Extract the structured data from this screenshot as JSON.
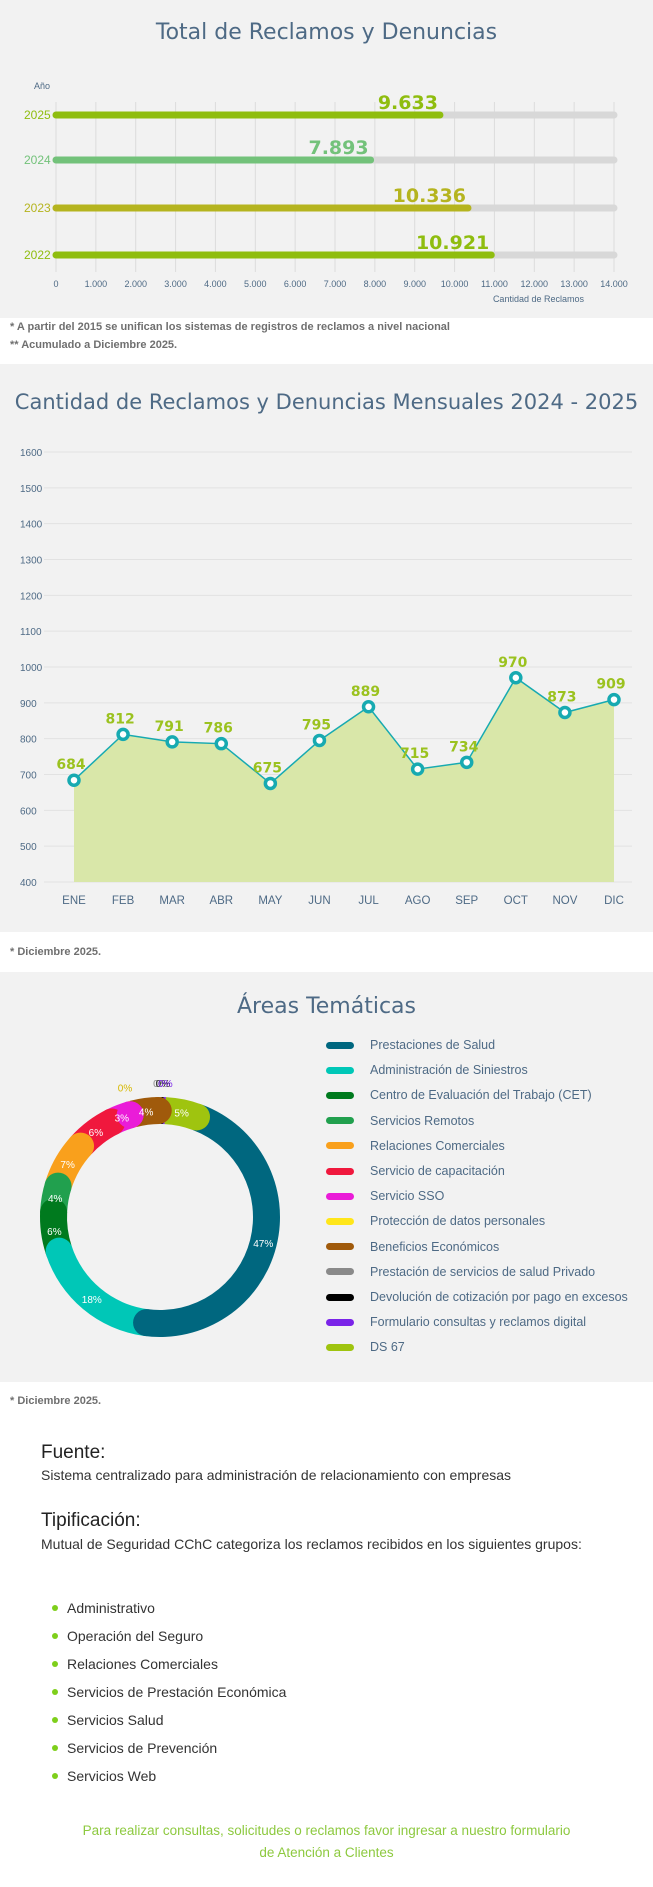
{
  "section1": {
    "title": "Total de Reclamos y Denuncias",
    "notes": [
      "* A partir del 2015 se unifican los sistemas de registros de reclamos a nivel nacional",
      "** Acumulado a Diciembre 2025."
    ]
  },
  "section2": {
    "title": "Cantidad de Reclamos y Denuncias Mensuales 2024 - 2025",
    "note": "* Diciembre 2025."
  },
  "section3": {
    "title": "Áreas Temáticas",
    "note": "* Diciembre 2025."
  },
  "fuente": {
    "title": "Fuente:",
    "text": "Sistema centralizado para administración de relacionamiento con empresas"
  },
  "tipificacion": {
    "title": "Tipificación:",
    "text": "Mutual de Seguridad CChC categoriza los reclamos recibidos en los siguientes grupos:",
    "items": [
      "Administrativo",
      "Operación del Seguro",
      "Relaciones Comerciales",
      "Servicios de Prestación Económica",
      "Servicios Salud",
      "Servicios de Prevención",
      "Servicios Web"
    ]
  },
  "footer": {
    "line1": "Para realizar consultas, solicitudes o reclamos favor ingresar a nuestro formulario",
    "link": "de Atención a Clientes"
  },
  "colors": {
    "title_blue": "#4e6a85",
    "lime": "#8fbd0f",
    "green_2024": "#73c27a",
    "olive_2023": "#b5b41f",
    "teal_marker": "#17aab1",
    "area_fill": "#d9e7a9"
  },
  "chart_data": [
    {
      "type": "bar",
      "orientation": "horizontal",
      "title": "Total de Reclamos y Denuncias",
      "ylabel": "Año",
      "xlabel": "Cantidad de Reclamos",
      "categories": [
        "2025",
        "2024",
        "2023",
        "2022"
      ],
      "values": [
        9633,
        7893,
        10336,
        10921
      ],
      "value_labels": [
        "9.633",
        "7.893",
        "10.336",
        "10.921"
      ],
      "bar_colors": [
        "#8fbd0f",
        "#73c27a",
        "#b5b41f",
        "#8fbd0f"
      ],
      "xlim": [
        0,
        14000
      ],
      "xticks": [
        "0",
        "1.000",
        "2.000",
        "3.000",
        "4.000",
        "5.000",
        "6.000",
        "7.000",
        "8.000",
        "9.000",
        "10.000",
        "11.000",
        "12.000",
        "13.000",
        "14.000"
      ],
      "grid": true
    },
    {
      "type": "area",
      "title": "Cantidad de Reclamos y Denuncias Mensuales 2024 - 2025",
      "categories": [
        "ENE",
        "FEB",
        "MAR",
        "ABR",
        "MAY",
        "JUN",
        "JUL",
        "AGO",
        "SEP",
        "OCT",
        "NOV",
        "DIC"
      ],
      "values": [
        684,
        812,
        791,
        786,
        675,
        795,
        889,
        715,
        734,
        970,
        873,
        909
      ],
      "ylim": [
        400,
        1600
      ],
      "yticks": [
        "400",
        "500",
        "600",
        "700",
        "800",
        "900",
        "1000",
        "1100",
        "1200",
        "1300",
        "1400",
        "1500",
        "1600"
      ],
      "grid": true
    },
    {
      "type": "pie",
      "variant": "donut",
      "title": "Áreas Temáticas",
      "legend_position": "right",
      "labels": [
        "Prestaciones de Salud",
        "Administración de Siniestros",
        "Centro de Evaluación del Trabajo (CET)",
        "Servicios Remotos",
        "Relaciones Comerciales",
        "Servicio de capacitación",
        "Servicio SSO",
        "Protección de datos personales",
        "Beneficios Económicos",
        "Prestación de servicios de salud Privado",
        "Devolución de cotización por pago en excesos",
        "Formulario consultas y reclamos digital",
        "DS 67"
      ],
      "values": [
        47,
        18,
        6,
        4,
        7,
        6,
        3,
        0.3,
        4,
        0.3,
        0.3,
        0.3,
        5
      ],
      "value_labels": [
        "47%",
        "18%",
        "6%",
        "4%",
        "7%",
        "6%",
        "3%",
        "0%",
        "4%",
        "0%",
        "0%",
        "0%",
        "5%"
      ],
      "colors": [
        "#00677f",
        "#00c7b7",
        "#007a1e",
        "#21a04e",
        "#f9a01c",
        "#f0183d",
        "#ea1cd8",
        "#ffe61a",
        "#a05a0b",
        "#8a8a8a",
        "#000000",
        "#7a24e8",
        "#9fc40f"
      ]
    }
  ]
}
